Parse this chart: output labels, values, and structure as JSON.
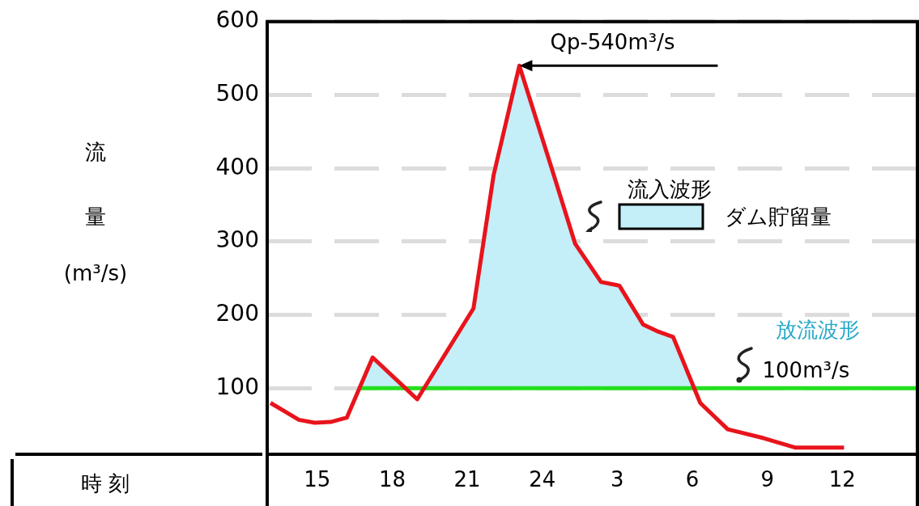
{
  "chart_data": {
    "type": "line",
    "xlabel": "時 刻",
    "ylabel": "流量 (m³/s)",
    "xlim": [
      "--01-01T13:00",
      "--01-02T15:00"
    ],
    "xticks": [
      {
        "value": "--01-01T15:00",
        "label": "15"
      },
      {
        "value": "--01-01T18:00",
        "label": "18"
      },
      {
        "value": "--01-01T21:00",
        "label": "21"
      },
      {
        "value": "--01-02T00:00",
        "label": "24"
      },
      {
        "value": "--01-02T03:00",
        "label": "3"
      },
      {
        "value": "--01-02T06:00",
        "label": "6"
      },
      {
        "value": "--01-02T09:00",
        "label": "9"
      },
      {
        "value": "--01-02T12:00",
        "label": "12"
      }
    ],
    "ylim": [
      10,
      600
    ],
    "yticks": [
      100,
      200,
      300,
      400,
      500,
      600
    ],
    "grid": "y",
    "legend": "right",
    "marker": "none",
    "series": [
      {
        "type": "area",
        "name": "ダム貯留量",
        "color": "#c4eef8",
        "x": [
          "--01-01T16:41",
          "--01-01T17:13",
          "--01-01T18:32",
          "--01-01T19:16",
          "--01-01T21:15",
          "--01-01T22:03",
          "--01-01T23:05",
          "--01-02T00:22",
          "--01-02T01:19",
          "--01-02T02:21",
          "--01-02T03:05",
          "--01-02T04:02",
          "--01-02T04:35",
          "--01-02T05:14",
          "--01-02T06:05"
        ],
        "values": [
          100,
          142,
          100,
          100,
          209,
          390,
          540,
          401,
          297,
          245,
          240,
          187,
          178,
          170,
          100
        ]
      },
      {
        "type": "line",
        "name": "流入波形",
        "color": "#e8141c",
        "x": [
          "--01-01T13:08",
          "--01-01T14:16",
          "--01-01T14:54",
          "--01-01T15:32",
          "--01-01T16:11",
          "--01-01T17:13",
          "--01-01T19:00",
          "--01-01T21:15",
          "--01-01T22:03",
          "--01-01T23:05",
          "--01-02T00:22",
          "--01-02T01:19",
          "--01-02T02:21",
          "--01-02T03:05",
          "--01-02T04:02",
          "--01-02T04:35",
          "--01-02T05:14",
          "--01-02T06:19",
          "--01-02T07:25",
          "--01-02T08:51",
          "--01-02T10:08",
          "--01-02T12:04"
        ],
        "values": [
          80,
          57,
          53,
          54,
          60,
          142,
          85,
          209,
          390,
          540,
          401,
          297,
          245,
          240,
          187,
          178,
          170,
          80,
          44,
          32,
          19,
          19
        ]
      },
      {
        "type": "line",
        "name": "放流波形",
        "color": "#22e01e",
        "x": [
          "--01-01T16:41",
          "--01-02T15:00"
        ],
        "values": [
          100,
          100
        ]
      }
    ],
    "annotations": [
      {
        "text": "Qp-540m³/s",
        "x": "--01-01T23:05",
        "y": 540
      },
      {
        "text": "100m³/s",
        "x": "--01-02T08:48",
        "y": 100
      }
    ]
  }
}
